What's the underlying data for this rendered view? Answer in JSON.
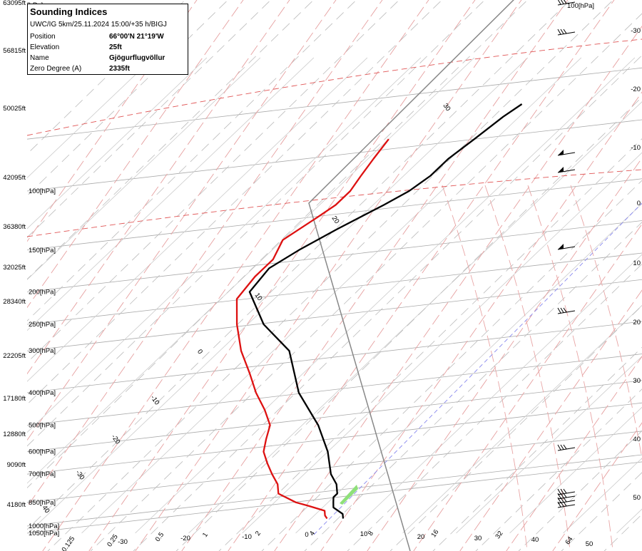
{
  "title": "Sounding Indices",
  "subtitle": "UWC/IG 5km/25.11.2024 15:00/+35 h/BIGJ",
  "info": [
    {
      "label": "Position",
      "value": "66°00'N 21°19'W"
    },
    {
      "label": "Elevation",
      "value": "25ft"
    },
    {
      "label": "Name",
      "value": "Gjögurflugvöllur"
    },
    {
      "label": "Zero Degree (A)",
      "value": "2335ft"
    }
  ],
  "chart_data": {
    "type": "line",
    "chart_kind": "Skew-T log-P sounding diagram",
    "y_axis_left": {
      "scale": "log-pressure",
      "pressure_labels": [
        "1050[hPa]",
        "1000[hPa]",
        "850[hPa]",
        "700[hPa]",
        "600[hPa]",
        "500[hPa]",
        "400[hPa]",
        "300[hPa]",
        "250[hPa]",
        "200[hPa]",
        "150[hPa]",
        "100[hPa]"
      ],
      "altitude_labels": [
        "4180ft",
        "9090ft",
        "12880ft",
        "17180ft",
        "22205ft",
        "28340ft",
        "32025ft",
        "36380ft",
        "42095ft",
        "50025ft",
        "56815ft",
        "63095ft"
      ],
      "top_label": "[hPa]"
    },
    "x_axis_bottom": {
      "temperature_ticks": [
        "-30",
        "-20",
        "-10",
        "0",
        "10",
        "20",
        "30",
        "40",
        "50"
      ],
      "mixing_ratio_ticks": [
        "0.125",
        "0.25",
        "0.5",
        "1",
        "2",
        "4",
        "8",
        "16",
        "32",
        "64"
      ]
    },
    "skewed_isotherm_labels": [
      "-30",
      "-20",
      "-10",
      "0",
      "10",
      "20",
      "30",
      "40"
    ],
    "right_scale_labels": [
      "-30",
      "-20",
      "-10",
      "0",
      "10",
      "20",
      "30",
      "40",
      "50"
    ],
    "right_top_label": "100[hPa]",
    "series": [
      {
        "key": "temperature",
        "color": "#dd1111",
        "points": [
          {
            "p": 950,
            "t": 3
          },
          {
            "p": 930,
            "t": 2
          },
          {
            "p": 900,
            "t": 1
          },
          {
            "p": 870,
            "t": -3
          },
          {
            "p": 850,
            "t": -6
          },
          {
            "p": 800,
            "t": -11
          },
          {
            "p": 750,
            "t": -13
          },
          {
            "p": 700,
            "t": -16
          },
          {
            "p": 650,
            "t": -19
          },
          {
            "p": 600,
            "t": -22
          },
          {
            "p": 550,
            "t": -24
          },
          {
            "p": 500,
            "t": -26
          },
          {
            "p": 450,
            "t": -30
          },
          {
            "p": 400,
            "t": -35
          },
          {
            "p": 350,
            "t": -40
          },
          {
            "p": 300,
            "t": -46
          },
          {
            "p": 250,
            "t": -52
          },
          {
            "p": 210,
            "t": -57
          },
          {
            "p": 180,
            "t": -58
          },
          {
            "p": 160,
            "t": -58
          },
          {
            "p": 140,
            "t": -60
          },
          {
            "p": 120,
            "t": -58
          },
          {
            "p": 110,
            "t": -57
          },
          {
            "p": 100,
            "t": -57
          },
          {
            "p": 90,
            "t": -58
          },
          {
            "p": 80,
            "t": -59
          },
          {
            "p": 70,
            "t": -60
          }
        ]
      },
      {
        "key": "dewpoint",
        "color": "#000000",
        "points": [
          {
            "p": 950,
            "t": 6
          },
          {
            "p": 920,
            "t": 5
          },
          {
            "p": 880,
            "t": 2
          },
          {
            "p": 850,
            "t": 1
          },
          {
            "p": 820,
            "t": 0
          },
          {
            "p": 800,
            "t": 0
          },
          {
            "p": 750,
            "t": -2
          },
          {
            "p": 700,
            "t": -5
          },
          {
            "p": 600,
            "t": -10
          },
          {
            "p": 500,
            "t": -17
          },
          {
            "p": 400,
            "t": -27
          },
          {
            "p": 300,
            "t": -37
          },
          {
            "p": 250,
            "t": -47
          },
          {
            "p": 200,
            "t": -56
          },
          {
            "p": 170,
            "t": -57
          },
          {
            "p": 150,
            "t": -55
          },
          {
            "p": 130,
            "t": -52
          },
          {
            "p": 110,
            "t": -48
          },
          {
            "p": 100,
            "t": -46
          },
          {
            "p": 90,
            "t": -45
          },
          {
            "p": 80,
            "t": -45
          },
          {
            "p": 70,
            "t": -44
          },
          {
            "p": 60,
            "t": -43
          },
          {
            "p": 55,
            "t": -42
          }
        ]
      }
    ],
    "wind_barbs": 11
  }
}
